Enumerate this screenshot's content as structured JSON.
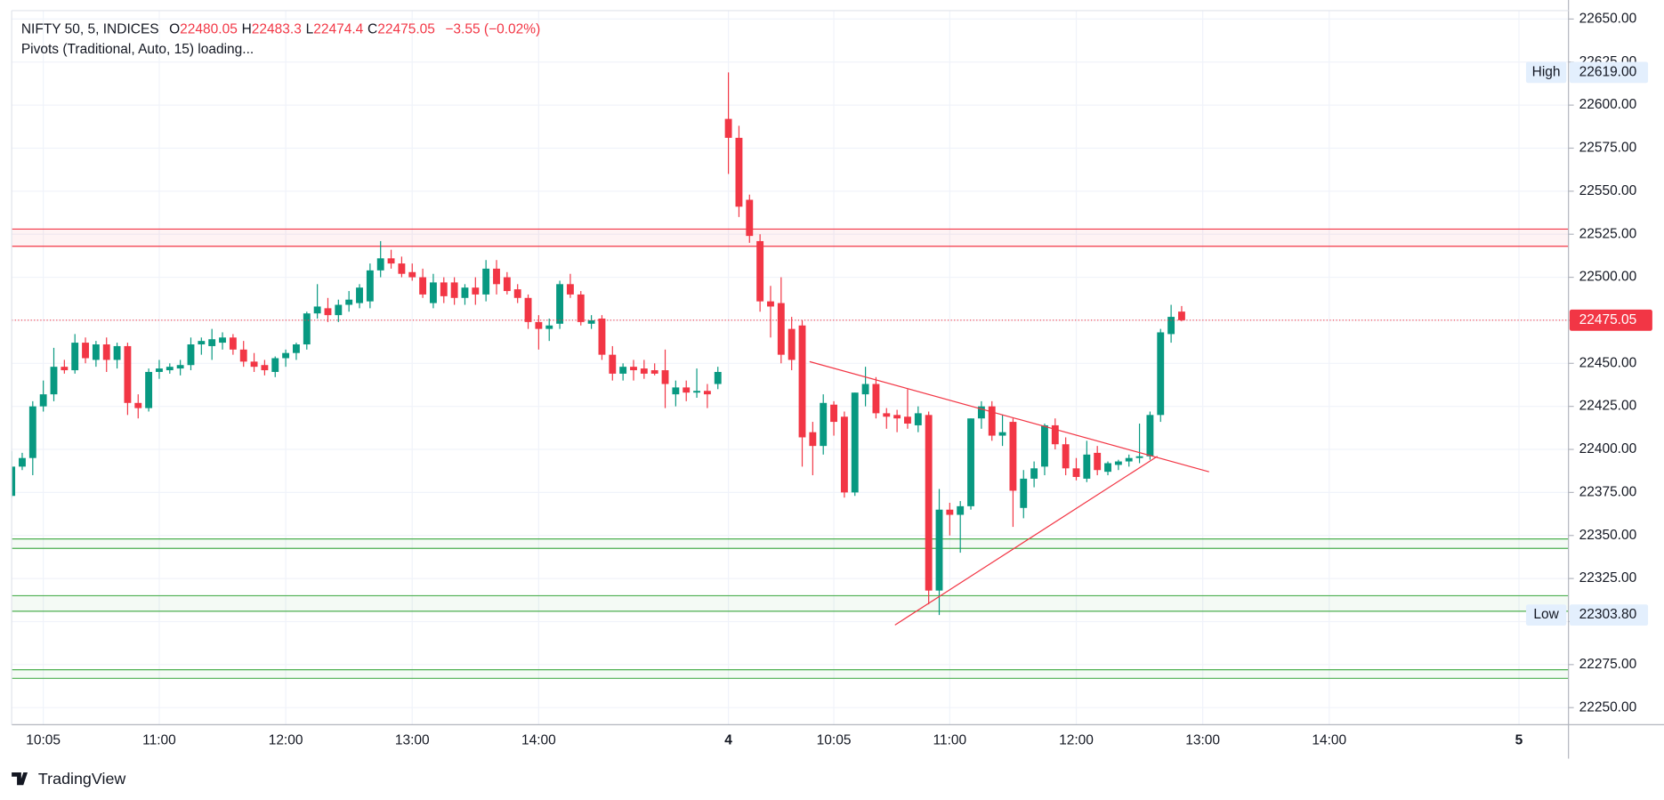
{
  "chart_data": {
    "type": "candlestick",
    "title": "NIFTY 50, 5, INDICES",
    "ohlc_labels": [
      "O",
      "H",
      "L",
      "C"
    ],
    "change": "−3.55 (−0.02%)",
    "indicator": "Pivots (Traditional, Auto, 15) loading...",
    "up_color": "#089981",
    "down_color": "#f23645",
    "open": [
      22373,
      22390,
      22395,
      22425,
      22432,
      22448,
      22446,
      22462,
      22452,
      22461,
      22452,
      22460,
      22427,
      22424,
      22445,
      22446,
      22447,
      22449,
      22461,
      22460,
      22462,
      22465,
      22458,
      22451,
      22449,
      22445,
      22453,
      22456,
      22461,
      22479,
      22482,
      22478,
      22484,
      22485,
      22486,
      22504,
      22511,
      22508,
      22503,
      22500,
      22485,
      22497,
      22497,
      22488,
      22494,
      22490,
      22505,
      22500,
      22493,
      22488,
      22474,
      22470,
      22473,
      22496,
      22490,
      22473,
      22476,
      22455,
      22444,
      22448,
      22447,
      22446,
      22446,
      22432,
      22436,
      22433,
      22434,
      22438,
      22592,
      22581,
      22545,
      22521,
      22486,
      22485,
      22470,
      22472,
      22410,
      22402,
      22426,
      22419,
      22375,
      22432,
      22438,
      22421,
      22420,
      22419,
      22414,
      22420,
      22318,
      22365,
      22362,
      22367,
      22418,
      22425,
      22408,
      22416,
      22366,
      22383,
      22390,
      22414,
      22403,
      22389,
      22383,
      22398,
      22387,
      22391,
      22393,
      22395,
      22396,
      22420,
      22467,
      22480.05
    ],
    "high": [
      22399,
      22398,
      22428,
      22440,
      22459,
      22452,
      22467,
      22465,
      22463,
      22465,
      22462,
      22462,
      22432,
      22447,
      22452,
      22450,
      22452,
      22465,
      22465,
      22470,
      22468,
      22467,
      22463,
      22456,
      22452,
      22454,
      22458,
      22462,
      22480,
      22496,
      22488,
      22487,
      22492,
      22496,
      22508,
      22521,
      22516,
      22512,
      22508,
      22505,
      22502,
      22500,
      22500,
      22496,
      22500,
      22510,
      22510,
      22503,
      22496,
      22490,
      22478,
      22476,
      22498,
      22502,
      22492,
      22478,
      22478,
      22460,
      22450,
      22452,
      22452,
      22450,
      22458,
      22440,
      22440,
      22447,
      22438,
      22448,
      22619,
      22588,
      22548,
      22525,
      22495,
      22500,
      22477,
      22475,
      22416,
      22432,
      22428,
      22422,
      22433,
      22448,
      22442,
      22424,
      22423,
      22435,
      22425,
      22422,
      22377,
      22369,
      22370,
      22418,
      22428,
      22428,
      22420,
      22418,
      22388,
      22393,
      22415,
      22418,
      22407,
      22395,
      22405,
      22402,
      22393,
      22394,
      22397,
      22415,
      22422,
      22470,
      22484,
      22483.3
    ],
    "low": [
      22372,
      22388,
      22385,
      22422,
      22428,
      22444,
      22444,
      22450,
      22448,
      22445,
      22447,
      22420,
      22418,
      22422,
      22441,
      22444,
      22443,
      22446,
      22455,
      22452,
      22458,
      22455,
      22448,
      22445,
      22443,
      22442,
      22448,
      22452,
      22458,
      22476,
      22474,
      22474,
      22480,
      22482,
      22482,
      22500,
      22505,
      22500,
      22498,
      22488,
      22482,
      22485,
      22484,
      22484,
      22484,
      22486,
      22490,
      22490,
      22485,
      22470,
      22458,
      22463,
      22470,
      22488,
      22472,
      22470,
      22452,
      22440,
      22440,
      22440,
      22441,
      22443,
      22424,
      22425,
      22428,
      22430,
      22424,
      22435,
      22560,
      22535,
      22520,
      22480,
      22465,
      22450,
      22446,
      22390,
      22385,
      22397,
      22408,
      22372,
      22373,
      22425,
      22418,
      22412,
      22410,
      22412,
      22410,
      22310,
      22303.8,
      22350,
      22340,
      22365,
      22412,
      22405,
      22402,
      22355,
      22360,
      22378,
      22385,
      22400,
      22385,
      22382,
      22381,
      22385,
      22385,
      22388,
      22390,
      22392,
      22394,
      22416,
      22462,
      22474.4
    ],
    "close": [
      22390,
      22395,
      22425,
      22432,
      22448,
      22446,
      22462,
      22453,
      22461,
      22452,
      22460,
      22427,
      22424,
      22445,
      22447,
      22448,
      22449,
      22461,
      22463,
      22464,
      22465,
      22458,
      22451,
      22448,
      22446,
      22453,
      22456,
      22461,
      22479,
      22483,
      22478,
      22484,
      22487,
      22494,
      22504,
      22511,
      22508,
      22502,
      22500,
      22490,
      22497,
      22489,
      22488,
      22494,
      22490,
      22505,
      22496,
      22492,
      22488,
      22474,
      22470,
      22472,
      22496,
      22490,
      22474,
      22475,
      22455,
      22444,
      22448,
      22446,
      22444,
      22444,
      22438,
      22436,
      22433,
      22434,
      22432,
      22445,
      22581,
      22541,
      22524,
      22486,
      22483,
      22455,
      22452,
      22407,
      22402,
      22427,
      22416,
      22375,
      22433,
      22438,
      22421,
      22419,
      22418,
      22415,
      22421,
      22318,
      22365,
      22362,
      22367,
      22418,
      22425,
      22408,
      22410,
      22376,
      22383,
      22389,
      22414,
      22403,
      22389,
      22384,
      22397,
      22388,
      22392,
      22393,
      22395,
      22396,
      22420,
      22468,
      22477,
      22475.05
    ],
    "xlim": [
      0,
      147.7
    ],
    "xticks": [
      {
        "value": 3,
        "label": "10:05"
      },
      {
        "value": 14,
        "label": "11:00"
      },
      {
        "value": 26,
        "label": "12:00"
      },
      {
        "value": 38,
        "label": "13:00"
      },
      {
        "value": 50,
        "label": "14:00"
      },
      {
        "value": 68,
        "label": "4"
      },
      {
        "value": 78,
        "label": "10:05"
      },
      {
        "value": 89,
        "label": "11:00"
      },
      {
        "value": 101,
        "label": "12:00"
      },
      {
        "value": 113,
        "label": "13:00"
      },
      {
        "value": 125,
        "label": "14:00"
      },
      {
        "value": 143,
        "label": "5"
      }
    ],
    "ylim": [
      22240.1,
      22654.9
    ],
    "yticks": [
      {
        "value": 22250,
        "label": "22250.00"
      },
      {
        "value": 22275,
        "label": "22275.00"
      },
      {
        "value": 22300,
        "label": "22300.00"
      },
      {
        "value": 22325,
        "label": "22325.00"
      },
      {
        "value": 22350,
        "label": "22350.00"
      },
      {
        "value": 22375,
        "label": "22375.00"
      },
      {
        "value": 22400,
        "label": "22400.00"
      },
      {
        "value": 22425,
        "label": "22425.00"
      },
      {
        "value": 22450,
        "label": "22450.00"
      },
      {
        "value": 22475,
        "label": "22475.00"
      },
      {
        "value": 22500,
        "label": "22500.00"
      },
      {
        "value": 22525,
        "label": "22525.00"
      },
      {
        "value": 22550,
        "label": "22550.00"
      },
      {
        "value": 22575,
        "label": "22575.00"
      },
      {
        "value": 22600,
        "label": "22600.00"
      },
      {
        "value": 22625,
        "label": "22625.00"
      },
      {
        "value": 22650,
        "label": "22650.00"
      }
    ],
    "grid": true,
    "high_marker": {
      "label": "High",
      "price": {
        "value": 22619,
        "label": "22619.00"
      }
    },
    "low_marker": {
      "label": "Low",
      "price": {
        "value": 22303.8,
        "label": "22303.80"
      }
    },
    "zones": [
      {
        "color": "#f23645",
        "lower": 22518,
        "upper": 22528
      },
      {
        "color": "#4caf50",
        "lower": 22342.5,
        "upper": 22348
      },
      {
        "color": "#4caf50",
        "lower": 22306,
        "upper": 22315
      },
      {
        "color": "#4caf50",
        "lower": 22267,
        "upper": 22272
      }
    ],
    "trendlines": [
      {
        "color": "#f23645",
        "x": [
          75.7,
          113.6
        ],
        "y": [
          22451,
          22387
        ]
      },
      {
        "color": "#f23645",
        "x": [
          83.8,
          108.7
        ],
        "y": [
          22298,
          22396
        ]
      }
    ]
  },
  "brand": "TradingView"
}
